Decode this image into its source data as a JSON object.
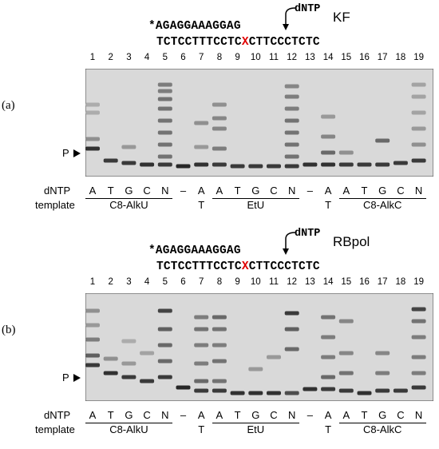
{
  "panels": [
    {
      "id": "a",
      "letter": "(a)",
      "enzyme": "KF",
      "primer": "*AGAGGAAAGGAG",
      "dntp_label": "dNTP",
      "template_left": "TCTCCTTTCCTC",
      "template_x": "X",
      "template_right": "CTTCCCTCTC",
      "lanes": [
        "1",
        "2",
        "3",
        "4",
        "5",
        "6",
        "7",
        "8",
        "9",
        "10",
        "11",
        "12",
        "13",
        "14",
        "15",
        "16",
        "17",
        "18",
        "19"
      ],
      "p_label": "P",
      "dntp_row_label": "dNTP",
      "template_row_label": "template",
      "dntp_letters": [
        "A",
        "T",
        "G",
        "C",
        "N",
        "–",
        "A",
        "A",
        "T",
        "G",
        "C",
        "N",
        "–",
        "A",
        "A",
        "T",
        "G",
        "C",
        "N"
      ],
      "template_letters": [
        "",
        "",
        "",
        "",
        "",
        "",
        "T",
        "",
        "",
        "",
        "",
        "",
        "",
        "T",
        "",
        "",
        "",
        "",
        ""
      ],
      "groups": [
        "C8-AlkU",
        "EtU",
        "C8-AlkC"
      ]
    },
    {
      "id": "b",
      "letter": "(b)",
      "enzyme": "RBpol",
      "primer": "*AGAGGAAAGGAG",
      "dntp_label": "dNTP",
      "template_left": "TCTCCTTTCCTC",
      "template_x": "X",
      "template_right": "CTTCCCTCTC",
      "lanes": [
        "1",
        "2",
        "3",
        "4",
        "5",
        "6",
        "7",
        "8",
        "9",
        "10",
        "11",
        "12",
        "13",
        "14",
        "15",
        "16",
        "17",
        "18",
        "19"
      ],
      "p_label": "P",
      "dntp_row_label": "dNTP",
      "template_row_label": "template",
      "dntp_letters": [
        "A",
        "T",
        "G",
        "C",
        "N",
        "–",
        "A",
        "A",
        "T",
        "G",
        "C",
        "N",
        "–",
        "A",
        "A",
        "T",
        "G",
        "C",
        "N"
      ],
      "template_letters": [
        "",
        "",
        "",
        "",
        "",
        "",
        "T",
        "",
        "",
        "",
        "",
        "",
        "",
        "T",
        "",
        "",
        "",
        "",
        ""
      ],
      "groups": [
        "C8-AlkU",
        "EtU",
        "C8-AlkC"
      ]
    }
  ],
  "colors": {
    "lesion_x": "#e00000",
    "gel_background": "#d9d9d9"
  }
}
